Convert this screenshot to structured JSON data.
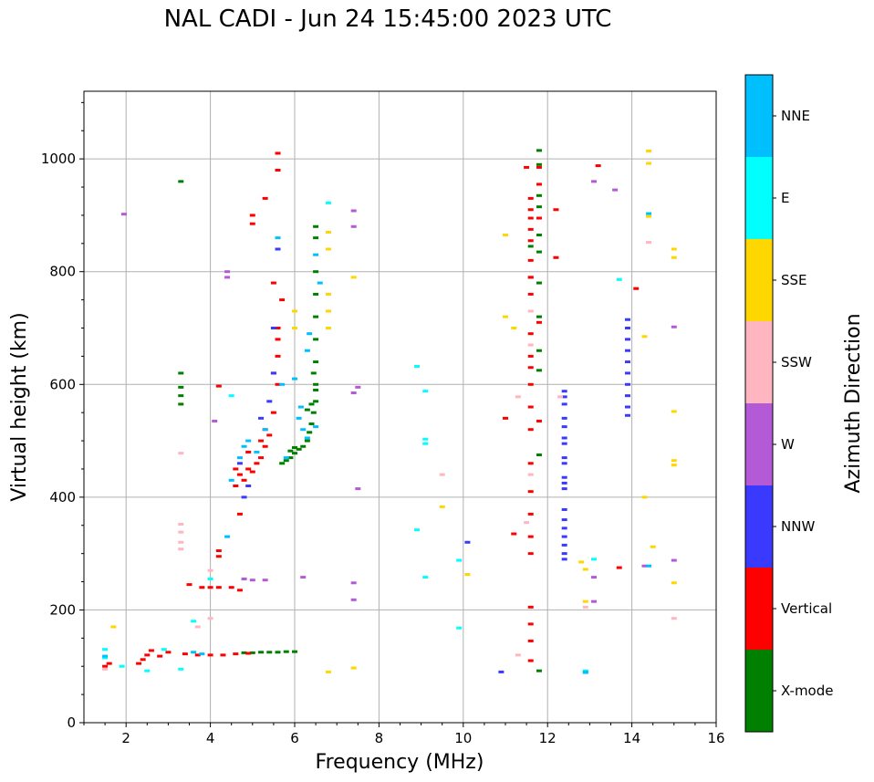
{
  "chart_data": {
    "type": "scatter",
    "title": "NAL CADI - Jun 24 15:45:00 2023 UTC",
    "xlabel": "Frequency (MHz)",
    "ylabel": "Virtual height (km)",
    "xlim": [
      1,
      16
    ],
    "ylim": [
      0,
      1120
    ],
    "xticks": [
      2,
      4,
      6,
      8,
      10,
      12,
      14,
      16
    ],
    "yticks": [
      0,
      200,
      400,
      600,
      800,
      1000
    ],
    "grid": true,
    "colorbar": {
      "label": "Azimuth Direction",
      "categories": [
        {
          "name": "X-mode",
          "color": "#008000"
        },
        {
          "name": "Vertical",
          "color": "#ff0000"
        },
        {
          "name": "NNW",
          "color": "#3a3aff"
        },
        {
          "name": "W",
          "color": "#b45ad6"
        },
        {
          "name": "SSW",
          "color": "#ffb6c1"
        },
        {
          "name": "SSE",
          "color": "#ffd700"
        },
        {
          "name": "E",
          "color": "#00ffff"
        },
        {
          "name": "NNE",
          "color": "#00bfff"
        }
      ]
    },
    "series": [
      {
        "name": "X-mode",
        "points": [
          [
            3.3,
            960
          ],
          [
            3.3,
            620
          ],
          [
            3.3,
            595
          ],
          [
            3.3,
            580
          ],
          [
            3.3,
            565
          ],
          [
            5.2,
            125
          ],
          [
            5.4,
            125
          ],
          [
            5.6,
            125
          ],
          [
            5.8,
            126
          ],
          [
            6.0,
            126
          ],
          [
            5.0,
            124
          ],
          [
            4.8,
            124
          ],
          [
            5.7,
            460
          ],
          [
            5.8,
            465
          ],
          [
            5.9,
            470
          ],
          [
            6.0,
            478
          ],
          [
            6.1,
            485
          ],
          [
            6.2,
            490
          ],
          [
            6.3,
            500
          ],
          [
            6.35,
            515
          ],
          [
            6.4,
            530
          ],
          [
            6.45,
            550
          ],
          [
            6.5,
            570
          ],
          [
            6.5,
            600
          ],
          [
            6.5,
            640
          ],
          [
            6.5,
            680
          ],
          [
            6.5,
            720
          ],
          [
            6.5,
            760
          ],
          [
            6.5,
            800
          ],
          [
            6.5,
            860
          ],
          [
            6.5,
            880
          ],
          [
            6.0,
            488
          ],
          [
            5.9,
            482
          ],
          [
            6.3,
            555
          ],
          [
            6.4,
            565
          ],
          [
            6.5,
            590
          ],
          [
            6.45,
            620
          ],
          [
            11.8,
            1015
          ],
          [
            11.8,
            990
          ],
          [
            11.8,
            935
          ],
          [
            11.8,
            915
          ],
          [
            11.8,
            865
          ],
          [
            11.8,
            835
          ],
          [
            11.8,
            780
          ],
          [
            11.8,
            720
          ],
          [
            11.8,
            660
          ],
          [
            11.8,
            625
          ],
          [
            11.8,
            475
          ],
          [
            11.8,
            92
          ],
          [
            11.6,
            790
          ],
          [
            11.6,
            845
          ]
        ]
      },
      {
        "name": "Vertical",
        "points": [
          [
            1.5,
            100
          ],
          [
            1.6,
            105
          ],
          [
            2.3,
            105
          ],
          [
            2.4,
            112
          ],
          [
            2.5,
            120
          ],
          [
            2.6,
            128
          ],
          [
            2.8,
            118
          ],
          [
            3.0,
            125
          ],
          [
            3.4,
            122
          ],
          [
            3.7,
            120
          ],
          [
            4.0,
            120
          ],
          [
            4.3,
            120
          ],
          [
            4.6,
            122
          ],
          [
            4.9,
            123
          ],
          [
            3.5,
            245
          ],
          [
            3.8,
            240
          ],
          [
            4.0,
            240
          ],
          [
            4.2,
            240
          ],
          [
            4.5,
            240
          ],
          [
            4.7,
            235
          ],
          [
            4.2,
            305
          ],
          [
            4.2,
            295
          ],
          [
            4.2,
            597
          ],
          [
            4.6,
            450
          ],
          [
            4.7,
            440
          ],
          [
            4.8,
            430
          ],
          [
            4.9,
            450
          ],
          [
            5.0,
            445
          ],
          [
            5.1,
            460
          ],
          [
            5.2,
            470
          ],
          [
            5.3,
            490
          ],
          [
            5.4,
            510
          ],
          [
            5.5,
            550
          ],
          [
            5.6,
            600
          ],
          [
            5.6,
            650
          ],
          [
            5.6,
            700
          ],
          [
            5.7,
            750
          ],
          [
            5.5,
            780
          ],
          [
            5.0,
            900
          ],
          [
            5.3,
            930
          ],
          [
            5.6,
            980
          ],
          [
            5.6,
            1010
          ],
          [
            5.0,
            885
          ],
          [
            5.3,
            520
          ],
          [
            5.2,
            500
          ],
          [
            4.9,
            480
          ],
          [
            5.5,
            620
          ],
          [
            5.6,
            680
          ],
          [
            4.6,
            420
          ],
          [
            4.7,
            370
          ],
          [
            11.2,
            335
          ],
          [
            11.5,
            985
          ],
          [
            11.6,
            930
          ],
          [
            11.6,
            910
          ],
          [
            11.6,
            895
          ],
          [
            11.6,
            875
          ],
          [
            11.6,
            855
          ],
          [
            11.6,
            820
          ],
          [
            11.6,
            790
          ],
          [
            11.6,
            760
          ],
          [
            11.6,
            690
          ],
          [
            11.6,
            650
          ],
          [
            11.6,
            630
          ],
          [
            11.6,
            600
          ],
          [
            11.6,
            560
          ],
          [
            11.6,
            520
          ],
          [
            11.6,
            460
          ],
          [
            11.6,
            410
          ],
          [
            11.6,
            370
          ],
          [
            11.6,
            330
          ],
          [
            11.6,
            300
          ],
          [
            11.6,
            205
          ],
          [
            11.6,
            175
          ],
          [
            11.6,
            145
          ],
          [
            11.6,
            110
          ],
          [
            11.0,
            540
          ],
          [
            11.8,
            985
          ],
          [
            11.8,
            955
          ],
          [
            11.8,
            895
          ],
          [
            11.8,
            710
          ],
          [
            11.8,
            535
          ],
          [
            12.2,
            825
          ],
          [
            12.2,
            910
          ],
          [
            13.2,
            988
          ],
          [
            14.1,
            770
          ],
          [
            13.7,
            275
          ]
        ]
      },
      {
        "name": "NNW",
        "points": [
          [
            12.4,
            290
          ],
          [
            12.4,
            300
          ],
          [
            12.4,
            315
          ],
          [
            12.4,
            330
          ],
          [
            12.4,
            345
          ],
          [
            12.4,
            360
          ],
          [
            12.4,
            378
          ],
          [
            12.4,
            415
          ],
          [
            12.4,
            425
          ],
          [
            12.4,
            435
          ],
          [
            12.4,
            460
          ],
          [
            12.4,
            470
          ],
          [
            12.4,
            495
          ],
          [
            12.4,
            505
          ],
          [
            12.4,
            525
          ],
          [
            12.4,
            540
          ],
          [
            12.4,
            565
          ],
          [
            12.4,
            578
          ],
          [
            12.4,
            588
          ],
          [
            13.9,
            545
          ],
          [
            13.9,
            560
          ],
          [
            13.9,
            580
          ],
          [
            13.9,
            600
          ],
          [
            13.9,
            620
          ],
          [
            13.9,
            640
          ],
          [
            13.9,
            660
          ],
          [
            13.9,
            680
          ],
          [
            13.9,
            700
          ],
          [
            13.9,
            715
          ],
          [
            4.7,
            460
          ],
          [
            4.8,
            400
          ],
          [
            4.9,
            420
          ],
          [
            5.2,
            540
          ],
          [
            5.4,
            570
          ],
          [
            5.5,
            620
          ],
          [
            5.6,
            840
          ],
          [
            5.5,
            700
          ],
          [
            10.1,
            320
          ],
          [
            10.9,
            90
          ]
        ]
      },
      {
        "name": "W",
        "points": [
          [
            1.95,
            902
          ],
          [
            4.4,
            800
          ],
          [
            4.4,
            790
          ],
          [
            4.1,
            535
          ],
          [
            4.8,
            255
          ],
          [
            5.0,
            253
          ],
          [
            5.3,
            253
          ],
          [
            6.2,
            258
          ],
          [
            7.4,
            908
          ],
          [
            7.4,
            880
          ],
          [
            7.4,
            585
          ],
          [
            7.5,
            595
          ],
          [
            7.5,
            415
          ],
          [
            7.4,
            248
          ],
          [
            7.4,
            218
          ],
          [
            13.1,
            960
          ],
          [
            13.1,
            258
          ],
          [
            13.6,
            945
          ],
          [
            14.3,
            278
          ],
          [
            15.0,
            702
          ],
          [
            15.0,
            288
          ],
          [
            13.1,
            215
          ]
        ]
      },
      {
        "name": "SSW",
        "points": [
          [
            1.5,
            95
          ],
          [
            3.3,
            478
          ],
          [
            3.3,
            352
          ],
          [
            3.3,
            338
          ],
          [
            3.3,
            320
          ],
          [
            3.3,
            308
          ],
          [
            3.7,
            170
          ],
          [
            4.0,
            185
          ],
          [
            4.0,
            270
          ],
          [
            9.5,
            440
          ],
          [
            11.3,
            120
          ],
          [
            11.3,
            578
          ],
          [
            11.5,
            355
          ],
          [
            11.6,
            730
          ],
          [
            11.6,
            670
          ],
          [
            11.6,
            440
          ],
          [
            12.3,
            578
          ],
          [
            12.9,
            205
          ],
          [
            14.4,
            852
          ],
          [
            15.0,
            185
          ]
        ]
      },
      {
        "name": "SSE",
        "points": [
          [
            1.7,
            170
          ],
          [
            6.0,
            730
          ],
          [
            6.0,
            700
          ],
          [
            6.8,
            700
          ],
          [
            6.8,
            730
          ],
          [
            6.8,
            760
          ],
          [
            6.8,
            840
          ],
          [
            6.8,
            870
          ],
          [
            7.4,
            790
          ],
          [
            9.5,
            383
          ],
          [
            10.1,
            263
          ],
          [
            11.0,
            865
          ],
          [
            11.0,
            720
          ],
          [
            11.2,
            700
          ],
          [
            12.8,
            285
          ],
          [
            12.9,
            272
          ],
          [
            12.9,
            215
          ],
          [
            14.3,
            400
          ],
          [
            14.3,
            685
          ],
          [
            14.4,
            1014
          ],
          [
            14.4,
            992
          ],
          [
            14.4,
            898
          ],
          [
            14.5,
            312
          ],
          [
            15.0,
            840
          ],
          [
            15.0,
            825
          ],
          [
            15.0,
            552
          ],
          [
            15.0,
            465
          ],
          [
            15.0,
            457
          ],
          [
            15.0,
            248
          ],
          [
            6.8,
            90
          ],
          [
            7.4,
            97
          ]
        ]
      },
      {
        "name": "E",
        "points": [
          [
            1.5,
            130
          ],
          [
            1.5,
            115
          ],
          [
            1.9,
            100
          ],
          [
            2.5,
            92
          ],
          [
            3.3,
            95
          ],
          [
            2.9,
            130
          ],
          [
            3.6,
            180
          ],
          [
            4.0,
            255
          ],
          [
            4.5,
            580
          ],
          [
            6.8,
            922
          ],
          [
            8.9,
            632
          ],
          [
            9.1,
            588
          ],
          [
            9.1,
            503
          ],
          [
            9.1,
            495
          ],
          [
            8.9,
            342
          ],
          [
            9.1,
            258
          ],
          [
            9.9,
            168
          ],
          [
            9.9,
            288
          ],
          [
            12.9,
            92
          ],
          [
            13.1,
            290
          ],
          [
            13.7,
            786
          ]
        ]
      },
      {
        "name": "NNE",
        "points": [
          [
            1.5,
            118
          ],
          [
            3.6,
            125
          ],
          [
            3.8,
            122
          ],
          [
            4.4,
            330
          ],
          [
            4.5,
            430
          ],
          [
            4.7,
            470
          ],
          [
            4.8,
            490
          ],
          [
            4.9,
            500
          ],
          [
            5.1,
            480
          ],
          [
            5.3,
            520
          ],
          [
            5.6,
            860
          ],
          [
            5.8,
            470
          ],
          [
            6.1,
            540
          ],
          [
            6.15,
            560
          ],
          [
            6.2,
            520
          ],
          [
            6.3,
            660
          ],
          [
            6.35,
            690
          ],
          [
            6.5,
            830
          ],
          [
            6.6,
            780
          ],
          [
            6.5,
            525
          ],
          [
            6.0,
            610
          ],
          [
            6.3,
            505
          ],
          [
            5.7,
            600
          ],
          [
            12.9,
            90
          ],
          [
            12.9,
            89
          ],
          [
            14.4,
            903
          ],
          [
            14.4,
            278
          ]
        ]
      }
    ]
  }
}
